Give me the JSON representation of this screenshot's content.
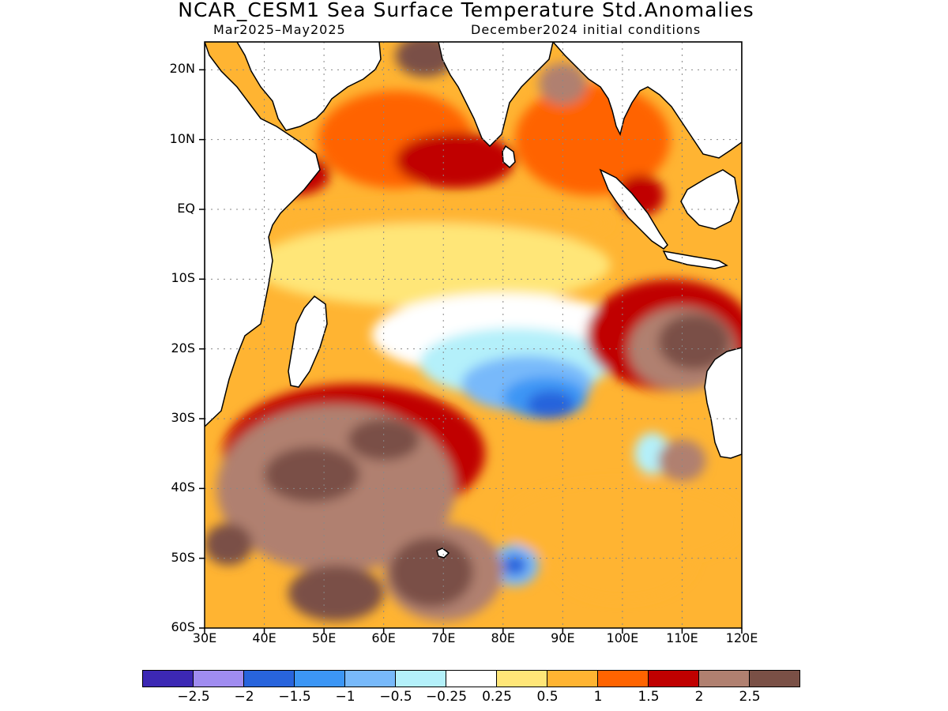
{
  "title": "NCAR_CESM1 Sea Surface Temperature Std.Anomalies",
  "period": "Mar2025–May2025",
  "init": "December2024 initial conditions",
  "lat_ticks": [
    {
      "label": "20N",
      "lat": 20
    },
    {
      "label": "10N",
      "lat": 10
    },
    {
      "label": "EQ",
      "lat": 0
    },
    {
      "label": "10S",
      "lat": -10
    },
    {
      "label": "20S",
      "lat": -20
    },
    {
      "label": "30S",
      "lat": -30
    },
    {
      "label": "40S",
      "lat": -40
    },
    {
      "label": "50S",
      "lat": -50
    },
    {
      "label": "60S",
      "lat": -60
    }
  ],
  "lon_ticks": [
    {
      "label": "30E",
      "lon": 30
    },
    {
      "label": "40E",
      "lon": 40
    },
    {
      "label": "50E",
      "lon": 50
    },
    {
      "label": "60E",
      "lon": 60
    },
    {
      "label": "70E",
      "lon": 70
    },
    {
      "label": "80E",
      "lon": 80
    },
    {
      "label": "90E",
      "lon": 90
    },
    {
      "label": "100E",
      "lon": 100
    },
    {
      "label": "110E",
      "lon": 110
    },
    {
      "label": "120E",
      "lon": 120
    }
  ],
  "map_extent": {
    "lon_min": 30,
    "lon_max": 120,
    "lat_min": -60,
    "lat_max": 24
  },
  "colorbar": {
    "colors": [
      "#3c28b4",
      "#a08cf0",
      "#2864dc",
      "#3c96f5",
      "#78b9fa",
      "#b4f0fa",
      "#ffffff",
      "#ffe678",
      "#ffb432",
      "#ff6400",
      "#c00000",
      "#b08070",
      "#7a5046"
    ],
    "labels": [
      "−2.5",
      "−2",
      "−1.5",
      "−1",
      "−0.5",
      "−0.25",
      "0.25",
      "0.5",
      "1",
      "1.5",
      "2",
      "2.5"
    ]
  },
  "anomaly_blobs": [
    {
      "lon": 62,
      "lat": 10,
      "rx": 13,
      "ry": 7,
      "value": 1.0
    },
    {
      "lon": 95,
      "lat": 10,
      "rx": 13,
      "ry": 8,
      "value": 1.0
    },
    {
      "lon": 45,
      "lat": 5,
      "rx": 6,
      "ry": 3,
      "value": 1.5
    },
    {
      "lon": 72,
      "lat": 7,
      "rx": 10,
      "ry": 4,
      "value": 1.5
    },
    {
      "lon": 90,
      "lat": 18,
      "rx": 4,
      "ry": 3,
      "value": 2.0
    },
    {
      "lon": 67,
      "lat": 22,
      "rx": 5,
      "ry": 3,
      "value": 2.5
    },
    {
      "lon": 103,
      "lat": 2,
      "rx": 4,
      "ry": 3,
      "value": 1.5
    },
    {
      "lon": 70,
      "lat": -2,
      "rx": 28,
      "ry": 3,
      "value": 0.5
    },
    {
      "lon": 68,
      "lat": -8,
      "rx": 30,
      "ry": 6,
      "value": 0.25
    },
    {
      "lon": 80,
      "lat": -18,
      "rx": 22,
      "ry": 6,
      "value": -0.25
    },
    {
      "lon": 82,
      "lat": -22,
      "rx": 16,
      "ry": 5,
      "value": -0.5
    },
    {
      "lon": 84,
      "lat": -25,
      "rx": 11,
      "ry": 4,
      "value": -1.0
    },
    {
      "lon": 87,
      "lat": -27,
      "rx": 7,
      "ry": 3,
      "value": -1.5
    },
    {
      "lon": 88,
      "lat": -28,
      "rx": 4,
      "ry": 2,
      "value": -2.0
    },
    {
      "lon": 105,
      "lat": -35,
      "rx": 3,
      "ry": 3,
      "value": -0.5
    },
    {
      "lon": 82,
      "lat": -51,
      "rx": 4,
      "ry": 3,
      "value": -1.0
    },
    {
      "lon": 82,
      "lat": -51,
      "rx": 2,
      "ry": 1.5,
      "value": -2.0
    },
    {
      "lon": 108,
      "lat": -18,
      "rx": 14,
      "ry": 8,
      "value": 1.5
    },
    {
      "lon": 110,
      "lat": -20,
      "rx": 9,
      "ry": 6,
      "value": 2.0
    },
    {
      "lon": 112,
      "lat": -19,
      "rx": 6,
      "ry": 4,
      "value": 2.5
    },
    {
      "lon": 110,
      "lat": -36,
      "rx": 4,
      "ry": 3,
      "value": 2.0
    },
    {
      "lon": 55,
      "lat": -35,
      "rx": 22,
      "ry": 10,
      "value": 1.5
    },
    {
      "lon": 52,
      "lat": -40,
      "rx": 20,
      "ry": 12,
      "value": 2.0
    },
    {
      "lon": 48,
      "lat": -38,
      "rx": 8,
      "ry": 4,
      "value": 2.5
    },
    {
      "lon": 60,
      "lat": -33,
      "rx": 6,
      "ry": 3,
      "value": 2.5
    },
    {
      "lon": 70,
      "lat": -52,
      "rx": 10,
      "ry": 7,
      "value": 2.0
    },
    {
      "lon": 68,
      "lat": -52,
      "rx": 7,
      "ry": 5,
      "value": 2.5
    },
    {
      "lon": 52,
      "lat": -55,
      "rx": 8,
      "ry": 4,
      "value": 2.5
    },
    {
      "lon": 34,
      "lat": -48,
      "rx": 4,
      "ry": 3,
      "value": 2.5
    },
    {
      "lon": 100,
      "lat": -50,
      "rx": 12,
      "ry": 6,
      "value": 0.5
    },
    {
      "lon": 100,
      "lat": -45,
      "rx": 20,
      "ry": 6,
      "value": 0.5
    }
  ]
}
